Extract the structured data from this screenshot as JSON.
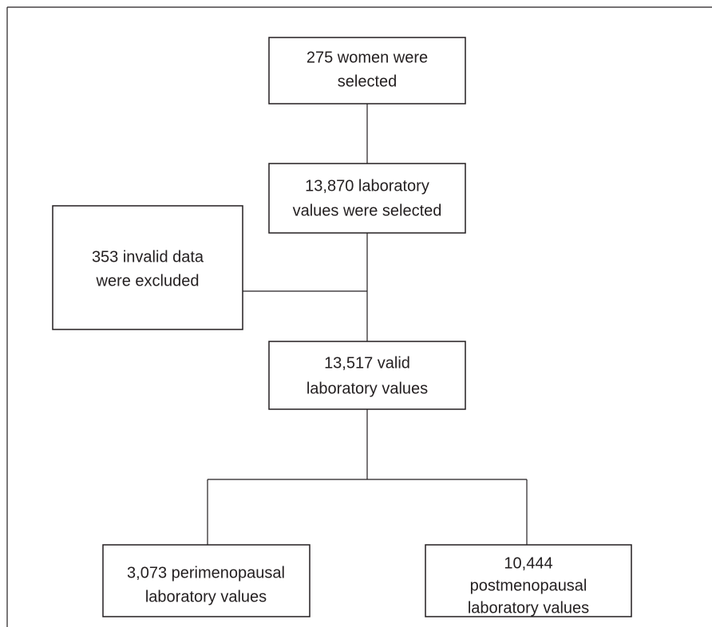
{
  "nodes": [
    {
      "lines": [
        "275 women were",
        "selected"
      ]
    },
    {
      "lines": [
        "13,870 laboratory",
        "values were selected"
      ]
    },
    {
      "lines": [
        "353 invalid data",
        "were excluded"
      ]
    },
    {
      "lines": [
        "13,517 valid",
        "laboratory values"
      ]
    },
    {
      "lines": [
        "3,073 perimenopausal",
        "laboratory values"
      ]
    },
    {
      "lines": [
        "10,444",
        "postmenopausal",
        "laboratory values"
      ]
    }
  ]
}
